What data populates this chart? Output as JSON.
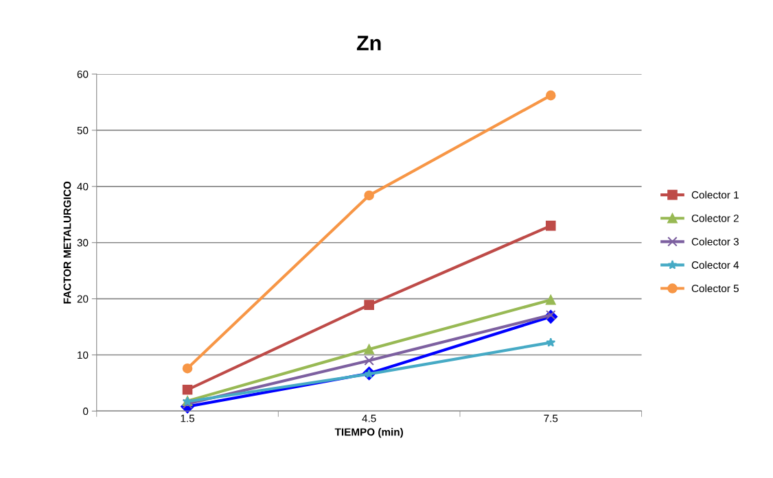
{
  "chart_data": {
    "type": "line",
    "title": "Zn",
    "xlabel": "TIEMPO (min)",
    "ylabel": "FACTOR METALURGICO",
    "categories": [
      "1.5",
      "4.5",
      "7.5"
    ],
    "series": [
      {
        "color": "#0000ff",
        "marker": "diamond",
        "values": [
          0.8,
          6.7,
          16.8
        ]
      },
      {
        "name": "Colector 1",
        "color": "#be4b48",
        "marker": "square",
        "values": [
          3.8,
          18.9,
          33.0
        ]
      },
      {
        "name": "Colector 2",
        "color": "#98b954",
        "marker": "triangle",
        "values": [
          1.8,
          11.0,
          19.8
        ]
      },
      {
        "name": "Colector 3",
        "color": "#7d60a0",
        "marker": "cross",
        "values": [
          1.3,
          9.0,
          17.1
        ]
      },
      {
        "name": "Colector 4",
        "color": "#46aac5",
        "marker": "star",
        "values": [
          1.7,
          6.6,
          12.2
        ]
      },
      {
        "name": "Colector 5",
        "color": "#f79646",
        "marker": "circle",
        "values": [
          7.6,
          38.4,
          56.2
        ]
      }
    ],
    "ylim": [
      0,
      60
    ],
    "yticks": [
      0,
      10,
      20,
      30,
      40,
      50,
      60
    ],
    "grid": "y",
    "legend": "right",
    "line_style": "solid"
  }
}
